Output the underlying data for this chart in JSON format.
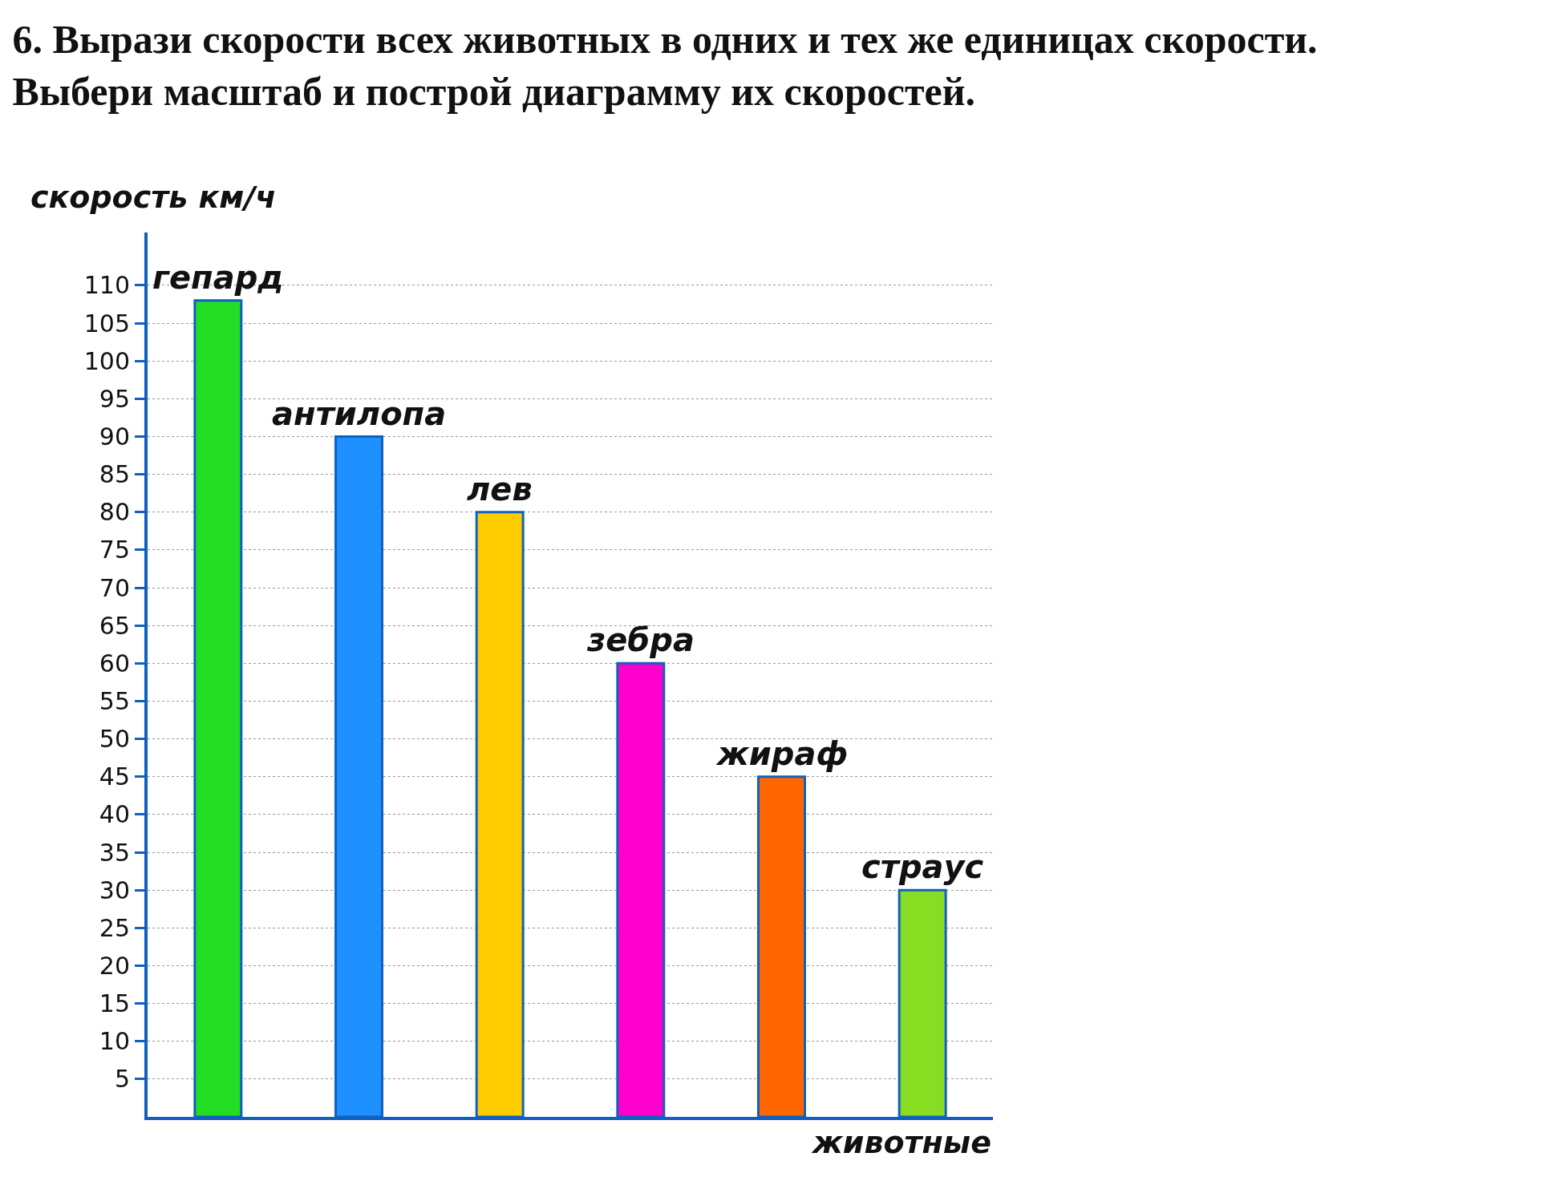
{
  "chart_data": {
    "type": "bar",
    "title": "6. Вырази скорости всех животных в одних и тех же единицах скорости.\nВыбери масштаб и построй диаграмму их скоростей.",
    "ylabel": "скорость км/ч",
    "xlabel": "животные",
    "categories": [
      "гепард",
      "антилопа",
      "лев",
      "зебра",
      "жираф",
      "страус"
    ],
    "values": [
      108,
      90,
      80,
      60,
      45,
      30
    ],
    "colors": [
      "#22dd22",
      "#1e90ff",
      "#ffcc00",
      "#ff00cc",
      "#ff6600",
      "#88dd22"
    ],
    "ylim": [
      0,
      117
    ],
    "yticks": [
      5,
      10,
      15,
      20,
      25,
      30,
      35,
      40,
      45,
      50,
      55,
      60,
      65,
      70,
      75,
      80,
      85,
      90,
      95,
      100,
      105,
      110
    ],
    "grid": "y",
    "tick_labels": "y"
  }
}
